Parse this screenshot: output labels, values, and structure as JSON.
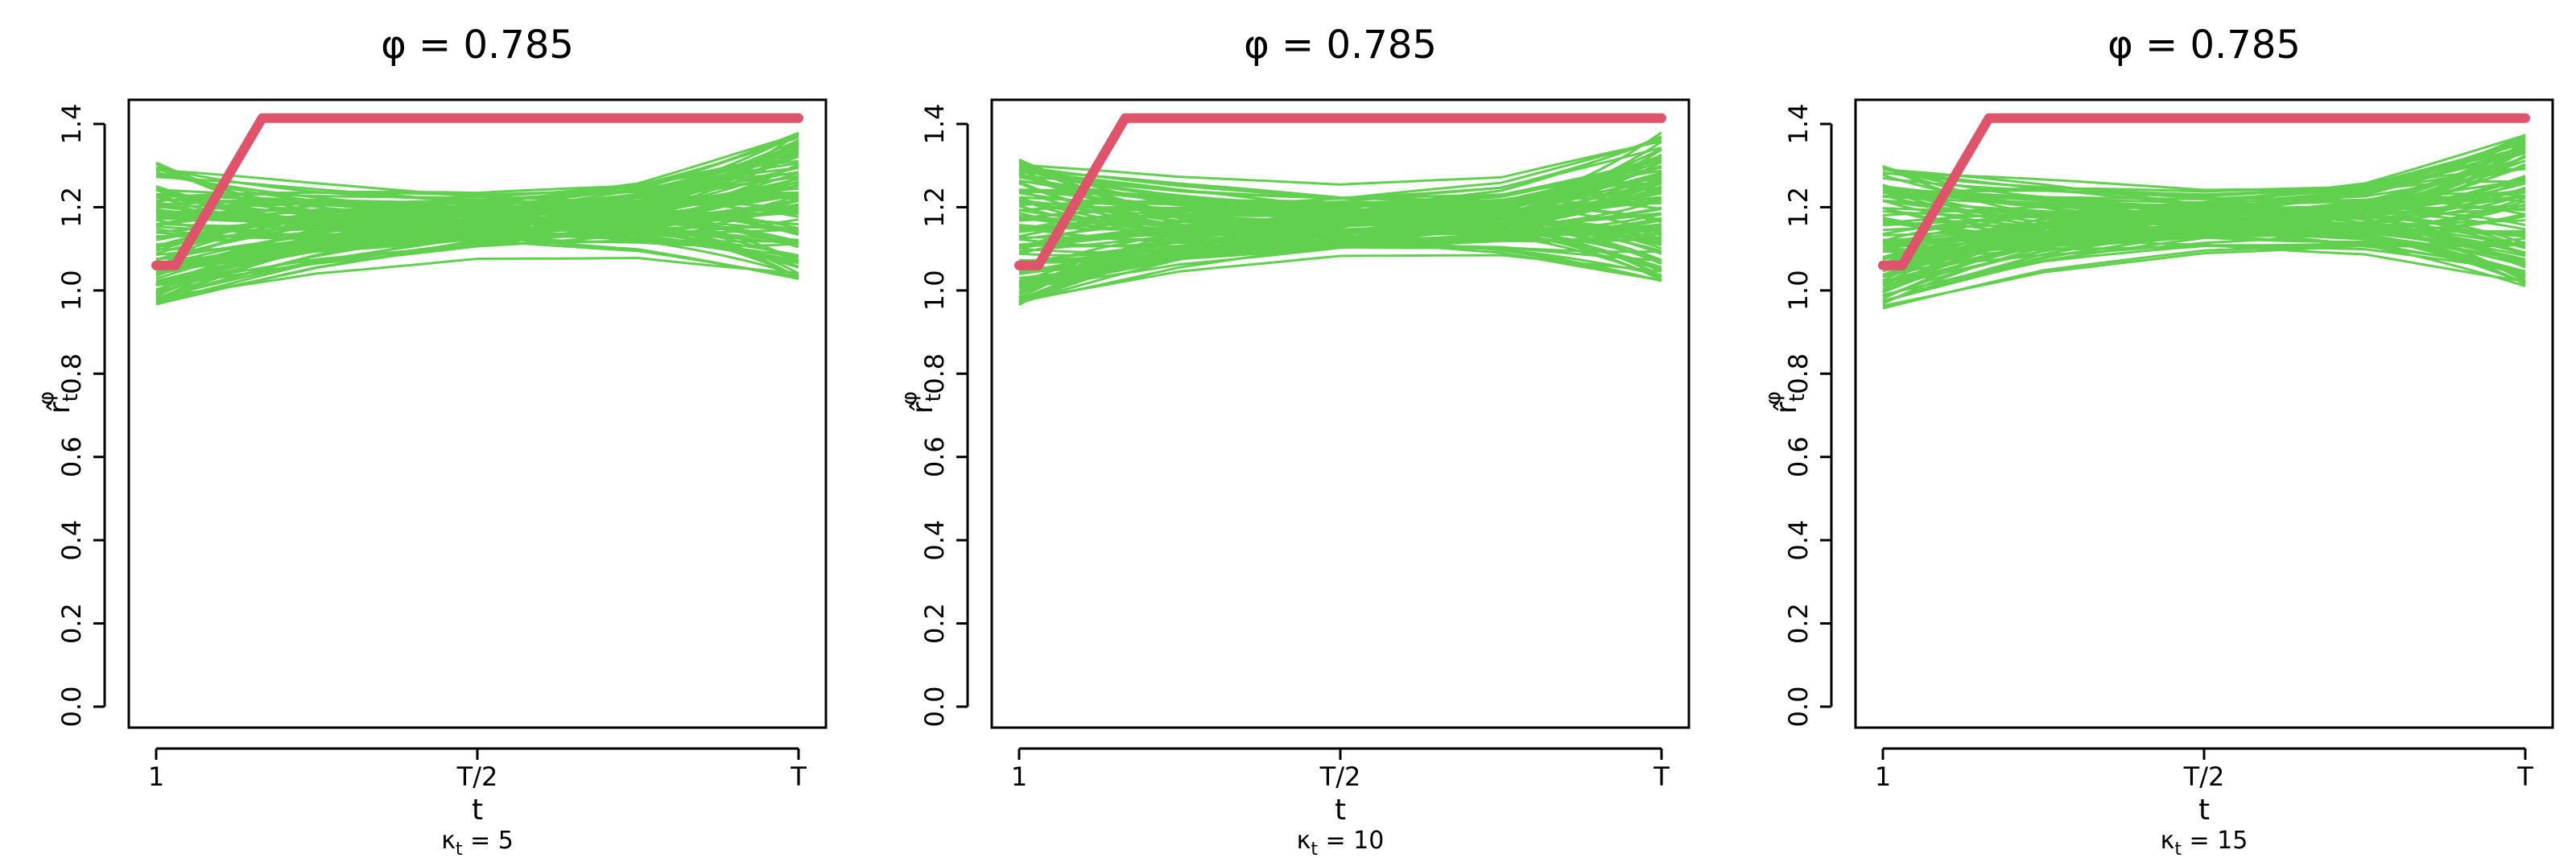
{
  "colors": {
    "sim": "#61d04f",
    "truth": "#df536b",
    "axis": "#000000"
  },
  "chart_data": [
    {
      "type": "line",
      "title": "φ = 0.785",
      "xlabel": "t",
      "ylabel_main": "r̂",
      "ylabel_sub": "t",
      "ylabel_sup": "φ",
      "sublabel_main": "κ",
      "sublabel_sub": "t",
      "sublabel_rest": " = 5",
      "ylim": [
        0,
        1.4
      ],
      "yticks": [
        0.0,
        0.2,
        0.4,
        0.6,
        0.8,
        1.0,
        1.2,
        1.4
      ],
      "ytick_labels": [
        "0.0",
        "0.2",
        "0.4",
        "0.6",
        "0.8",
        "1.0",
        "1.2",
        "1.4"
      ],
      "xlim": [
        0,
        1
      ],
      "xticks": [
        0,
        0.5,
        1
      ],
      "xtick_labels": [
        "1",
        "T/2",
        "T"
      ],
      "truth": {
        "x": [
          0,
          0.03,
          0.165,
          1
        ],
        "y": [
          1.06,
          1.06,
          1.414,
          1.414
        ]
      },
      "envelope": {
        "x": [
          0,
          0.25,
          0.5,
          0.75,
          1
        ],
        "low": [
          0.96,
          1.03,
          1.07,
          1.07,
          1.02
        ],
        "high": [
          1.31,
          1.28,
          1.26,
          1.28,
          1.38
        ]
      },
      "n_sim": 100,
      "seed": 11
    },
    {
      "type": "line",
      "title": "φ = 0.785",
      "xlabel": "t",
      "ylabel_main": "r̂",
      "ylabel_sub": "t",
      "ylabel_sup": "φ",
      "sublabel_main": "κ",
      "sublabel_sub": "t",
      "sublabel_rest": " = 10",
      "ylim": [
        0,
        1.4
      ],
      "yticks": [
        0.0,
        0.2,
        0.4,
        0.6,
        0.8,
        1.0,
        1.2,
        1.4
      ],
      "ytick_labels": [
        "0.0",
        "0.2",
        "0.4",
        "0.6",
        "0.8",
        "1.0",
        "1.2",
        "1.4"
      ],
      "xlim": [
        0,
        1
      ],
      "xticks": [
        0,
        0.5,
        1
      ],
      "xtick_labels": [
        "1",
        "T/2",
        "T"
      ],
      "truth": {
        "x": [
          0,
          0.03,
          0.165,
          1
        ],
        "y": [
          1.06,
          1.06,
          1.414,
          1.414
        ]
      },
      "envelope": {
        "x": [
          0,
          0.25,
          0.5,
          0.75,
          1
        ],
        "low": [
          0.955,
          1.03,
          1.07,
          1.07,
          1.02
        ],
        "high": [
          1.315,
          1.28,
          1.26,
          1.28,
          1.38
        ]
      },
      "n_sim": 100,
      "seed": 23
    },
    {
      "type": "line",
      "title": "φ = 0.785",
      "xlabel": "t",
      "ylabel_main": "r̂",
      "ylabel_sub": "t",
      "ylabel_sup": "φ",
      "sublabel_main": "κ",
      "sublabel_sub": "t",
      "sublabel_rest": " = 15",
      "ylim": [
        0,
        1.4
      ],
      "yticks": [
        0.0,
        0.2,
        0.4,
        0.6,
        0.8,
        1.0,
        1.2,
        1.4
      ],
      "ytick_labels": [
        "0.0",
        "0.2",
        "0.4",
        "0.6",
        "0.8",
        "1.0",
        "1.2",
        "1.4"
      ],
      "xlim": [
        0,
        1
      ],
      "xticks": [
        0,
        0.5,
        1
      ],
      "xtick_labels": [
        "1",
        "T/2",
        "T"
      ],
      "truth": {
        "x": [
          0,
          0.03,
          0.165,
          1
        ],
        "y": [
          1.06,
          1.06,
          1.414,
          1.414
        ]
      },
      "envelope": {
        "x": [
          0,
          0.25,
          0.5,
          0.75,
          1
        ],
        "low": [
          0.95,
          1.03,
          1.07,
          1.07,
          1.01
        ],
        "high": [
          1.3,
          1.28,
          1.26,
          1.28,
          1.38
        ]
      },
      "n_sim": 100,
      "seed": 37
    }
  ]
}
